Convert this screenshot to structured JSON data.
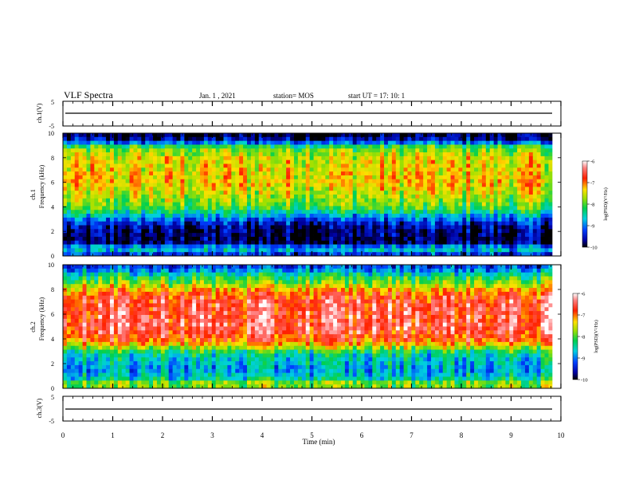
{
  "header": {
    "title": "VLF Spectra",
    "date": "Jan. 1 , 2021",
    "station": "station= MOS",
    "start": "start UT = 17: 10: 1"
  },
  "chart_data": [
    {
      "type": "line",
      "name": "ch1-waveform",
      "ylabel": "ch.1(V)",
      "ylim": [
        -5,
        5
      ],
      "y_ticks": [
        "5",
        "-5"
      ],
      "series": [
        {
          "values": [
            -1,
            -1,
            -1,
            -1,
            -1
          ]
        }
      ]
    },
    {
      "type": "heatmap",
      "name": "ch1-spectrogram",
      "ylabel_top": "ch.1",
      "ylabel": "Frequency (kHz)",
      "ylim": [
        0,
        10
      ],
      "y_ticks": [
        "0",
        "2",
        "4",
        "6",
        "8",
        "10"
      ],
      "colorbar": {
        "label": "log(PSD)(V²/Hz)",
        "range": [
          -10,
          -6
        ],
        "ticks": [
          "-6",
          "-7",
          "-8",
          "-9",
          "-10"
        ]
      },
      "profile": [
        {
          "f": 0.0,
          "v": -9.4
        },
        {
          "f": 0.3,
          "v": -9.2
        },
        {
          "f": 0.6,
          "v": -8.4
        },
        {
          "f": 1.0,
          "v": -9.8
        },
        {
          "f": 1.5,
          "v": -9.9
        },
        {
          "f": 2.0,
          "v": -9.8
        },
        {
          "f": 2.5,
          "v": -9.6
        },
        {
          "f": 3.0,
          "v": -9.1
        },
        {
          "f": 3.5,
          "v": -8.5
        },
        {
          "f": 4.0,
          "v": -8.0
        },
        {
          "f": 5.0,
          "v": -7.6
        },
        {
          "f": 6.0,
          "v": -7.3
        },
        {
          "f": 7.0,
          "v": -7.4
        },
        {
          "f": 8.0,
          "v": -7.5
        },
        {
          "f": 8.8,
          "v": -7.9
        },
        {
          "f": 9.2,
          "v": -9.0
        },
        {
          "f": 9.6,
          "v": -9.8
        },
        {
          "f": 10.0,
          "v": -10.0
        }
      ]
    },
    {
      "type": "heatmap",
      "name": "ch2-spectrogram",
      "ylabel_top": "ch.2",
      "ylabel": "Frequency (kHz)",
      "ylim": [
        0,
        10
      ],
      "y_ticks": [
        "0",
        "2",
        "4",
        "6",
        "8",
        "10"
      ],
      "colorbar": {
        "label": "log(PSD)(V²/Hz)",
        "range": [
          -10,
          -6
        ],
        "ticks": [
          "-6",
          "-7",
          "-8",
          "-9",
          "-10"
        ]
      },
      "profile": [
        {
          "f": 0.0,
          "v": -8.6
        },
        {
          "f": 0.3,
          "v": -7.2
        },
        {
          "f": 0.6,
          "v": -8.4
        },
        {
          "f": 1.0,
          "v": -8.6
        },
        {
          "f": 1.5,
          "v": -8.9
        },
        {
          "f": 2.0,
          "v": -8.7
        },
        {
          "f": 2.5,
          "v": -8.6
        },
        {
          "f": 3.0,
          "v": -8.2
        },
        {
          "f": 3.5,
          "v": -7.3
        },
        {
          "f": 4.0,
          "v": -6.8
        },
        {
          "f": 5.0,
          "v": -6.5
        },
        {
          "f": 6.0,
          "v": -6.6
        },
        {
          "f": 7.0,
          "v": -6.6
        },
        {
          "f": 7.8,
          "v": -7.0
        },
        {
          "f": 8.5,
          "v": -7.8
        },
        {
          "f": 9.0,
          "v": -8.2
        },
        {
          "f": 9.6,
          "v": -9.0
        },
        {
          "f": 10.0,
          "v": -9.3
        }
      ]
    },
    {
      "type": "line",
      "name": "ch3-waveform",
      "ylabel": "ch.3(V)",
      "ylim": [
        -5,
        5
      ],
      "y_ticks": [
        "5",
        "-5"
      ],
      "series": [
        {
          "values": [
            -1,
            -1,
            -1,
            -1,
            -1
          ]
        }
      ]
    }
  ],
  "x_axis": {
    "label": "Time (min)",
    "range": [
      0,
      10
    ],
    "ticks": [
      "0",
      "1",
      "2",
      "3",
      "4",
      "5",
      "6",
      "7",
      "8",
      "9",
      "10"
    ],
    "data_end": 9.83
  }
}
